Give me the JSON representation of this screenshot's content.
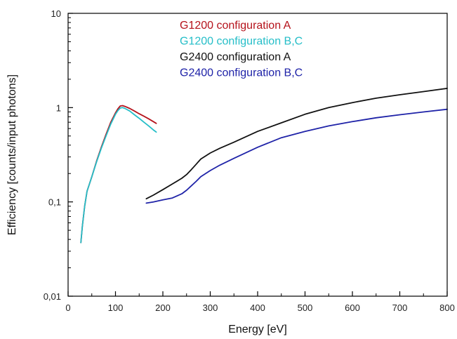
{
  "chart_data": {
    "type": "line",
    "title": "",
    "xlabel": "Energy [eV]",
    "ylabel": "Efficiency [counts/input photons]",
    "xlim": [
      0,
      800
    ],
    "ylim": [
      0.01,
      10
    ],
    "yscale": "log",
    "grid": false,
    "legend_position": "top",
    "x_ticks": [
      0,
      100,
      200,
      300,
      400,
      500,
      600,
      700,
      800
    ],
    "x_tick_labels": [
      "0",
      "100",
      "200",
      "300",
      "400",
      "500",
      "600",
      "700",
      "800"
    ],
    "y_ticks": [
      0.01,
      0.1,
      1,
      10
    ],
    "y_tick_labels": [
      "0,01",
      "0,1",
      "1",
      "10"
    ],
    "series": [
      {
        "name": "G1200 configuration A",
        "color": "#b5121b",
        "x": [
          27,
          30,
          35,
          40,
          45,
          50,
          60,
          70,
          80,
          90,
          100,
          105,
          110,
          115,
          120,
          130,
          140,
          150,
          160,
          170,
          180,
          186
        ],
        "y": [
          0.037,
          0.055,
          0.09,
          0.13,
          0.155,
          0.185,
          0.27,
          0.38,
          0.52,
          0.7,
          0.88,
          0.97,
          1.04,
          1.05,
          1.03,
          0.98,
          0.92,
          0.86,
          0.81,
          0.76,
          0.71,
          0.68
        ]
      },
      {
        "name": "G1200 configuration B,C",
        "color": "#25bec8",
        "x": [
          27,
          30,
          35,
          40,
          45,
          50,
          60,
          70,
          80,
          90,
          100,
          105,
          110,
          115,
          120,
          130,
          140,
          150,
          160,
          170,
          180,
          186
        ],
        "y": [
          0.037,
          0.055,
          0.09,
          0.13,
          0.155,
          0.185,
          0.265,
          0.37,
          0.5,
          0.67,
          0.85,
          0.93,
          0.99,
          1.0,
          0.98,
          0.92,
          0.84,
          0.77,
          0.7,
          0.64,
          0.58,
          0.55
        ]
      },
      {
        "name": "G2400 configuration A",
        "color": "#111111",
        "x": [
          165,
          180,
          200,
          220,
          240,
          250,
          260,
          270,
          280,
          300,
          320,
          350,
          400,
          450,
          500,
          550,
          600,
          650,
          700,
          750,
          800
        ],
        "y": [
          0.108,
          0.118,
          0.135,
          0.155,
          0.178,
          0.195,
          0.22,
          0.25,
          0.285,
          0.33,
          0.37,
          0.43,
          0.56,
          0.69,
          0.85,
          1.0,
          1.13,
          1.26,
          1.37,
          1.48,
          1.6
        ]
      },
      {
        "name": "G2400 configuration B,C",
        "color": "#1f23a8",
        "x": [
          165,
          180,
          200,
          220,
          240,
          250,
          260,
          270,
          280,
          300,
          320,
          350,
          400,
          450,
          500,
          550,
          600,
          650,
          700,
          750,
          800
        ],
        "y": [
          0.097,
          0.1,
          0.105,
          0.11,
          0.122,
          0.133,
          0.148,
          0.165,
          0.185,
          0.215,
          0.245,
          0.29,
          0.38,
          0.48,
          0.56,
          0.64,
          0.71,
          0.78,
          0.84,
          0.9,
          0.96
        ]
      }
    ]
  }
}
